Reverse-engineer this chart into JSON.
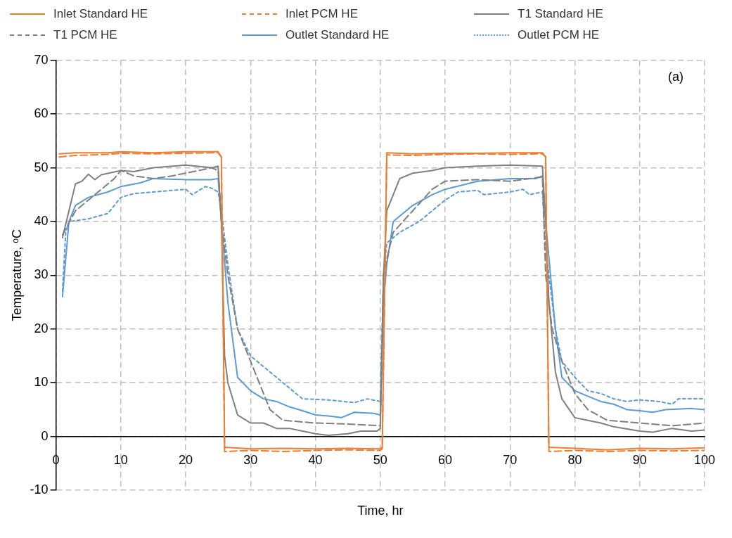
{
  "chart_data": {
    "type": "line",
    "xlabel": "Time, hr",
    "ylabel": "Temperature, ᵒC",
    "annotations": [
      "(a)"
    ],
    "xlim": [
      0,
      100
    ],
    "ylim": [
      -10,
      70
    ],
    "xticks": [
      0,
      10,
      20,
      30,
      40,
      50,
      60,
      70,
      80,
      90,
      100
    ],
    "yticks": [
      -10,
      0,
      10,
      20,
      30,
      40,
      50,
      60,
      70
    ],
    "grid": true,
    "legend": "top",
    "marker": "none",
    "series": [
      {
        "name": "Inlet Standard HE",
        "color": "#ed7d31",
        "line_style": "solid",
        "x": [
          0.5,
          3,
          8,
          10,
          15,
          20,
          25,
          25.5,
          26,
          30,
          35,
          40,
          45,
          50,
          50.3,
          51,
          55,
          60,
          65,
          70,
          75,
          75.5,
          76,
          80,
          85,
          90,
          95,
          100
        ],
        "values": [
          52.6,
          52.8,
          52.8,
          53,
          52.8,
          53,
          53,
          52,
          -2,
          -2.3,
          -2.2,
          -2.3,
          -2.2,
          -2.3,
          -2,
          52.8,
          52.6,
          52.7,
          52.7,
          52.8,
          52.8,
          52,
          -2,
          -2.2,
          -2.5,
          -2.2,
          -2.3,
          -2.1
        ]
      },
      {
        "name": "Inlet PCM HE",
        "color": "#ed7d31",
        "line_style": "dashed",
        "x": [
          0.5,
          3,
          8,
          10,
          15,
          20,
          25,
          25.5,
          26,
          30,
          35,
          40,
          45,
          50,
          50.3,
          51,
          55,
          60,
          65,
          70,
          75,
          75.5,
          76,
          80,
          85,
          90,
          95,
          100
        ],
        "values": [
          52,
          52.3,
          52.5,
          52.7,
          52.6,
          52.7,
          52.8,
          52,
          -2.8,
          -2.6,
          -2.8,
          -2.6,
          -2.5,
          -2.6,
          -2.3,
          52.4,
          52.3,
          52.5,
          52.6,
          52.5,
          52.6,
          52,
          -2.8,
          -2.6,
          -2.8,
          -2.6,
          -2.7,
          -2.6
        ]
      },
      {
        "name": "T1 Standard HE",
        "color": "#7f7f7f",
        "line_style": "solid",
        "x": [
          1,
          3,
          4,
          5,
          6,
          7,
          10,
          12,
          15,
          20,
          24,
          25,
          25.5,
          26,
          26.5,
          28,
          30,
          32,
          34,
          36,
          38,
          40,
          42,
          45,
          47,
          49.5,
          50,
          50.5,
          51,
          52,
          53,
          55,
          58,
          60,
          65,
          70,
          75,
          75.5,
          76,
          77,
          78,
          80,
          82,
          84,
          86,
          90,
          92,
          95,
          98,
          100
        ],
        "values": [
          37,
          47,
          47.5,
          48.8,
          47.8,
          48.7,
          49.5,
          49.3,
          50,
          50.5,
          50,
          50.3,
          40,
          15,
          10,
          4,
          2.5,
          2.5,
          1.5,
          1.5,
          1,
          0.5,
          0.2,
          0.5,
          1,
          1,
          1.5,
          30,
          42,
          45,
          48,
          49,
          49.5,
          50,
          50.3,
          50.5,
          50.3,
          40,
          25,
          12,
          7,
          3.5,
          3,
          2.5,
          1.8,
          1,
          0.8,
          1.5,
          1,
          1.2
        ]
      },
      {
        "name": "T1 PCM HE",
        "color": "#7f7f7f",
        "line_style": "dashed",
        "x": [
          1,
          3,
          5,
          7,
          9,
          10,
          12,
          15,
          18,
          20,
          24,
          25,
          25.5,
          26.5,
          28,
          30,
          32,
          33,
          35,
          40,
          45,
          50,
          50.5,
          51,
          52,
          55,
          58,
          60,
          65,
          70,
          75,
          75.5,
          76.5,
          78,
          80,
          82,
          85,
          90,
          95,
          100
        ],
        "values": [
          37.5,
          42,
          44,
          46,
          48,
          49.5,
          48.5,
          48,
          48.5,
          49,
          50,
          49.5,
          40,
          30,
          20,
          14,
          8,
          5,
          3,
          2.5,
          2.3,
          2,
          30,
          33,
          38,
          42,
          46,
          47.5,
          47.8,
          47.5,
          48.3,
          30,
          20,
          14,
          8,
          5,
          3,
          2.5,
          2,
          2.5
        ]
      },
      {
        "name": "Outlet Standard HE",
        "color": "#5b9bd5",
        "line_style": "solid",
        "x": [
          1,
          2,
          3,
          5,
          8,
          10,
          13,
          15,
          20,
          24,
          25,
          25.5,
          26.5,
          28,
          30,
          32,
          34,
          36,
          38,
          40,
          42,
          44,
          46,
          49,
          50,
          50.5,
          51,
          52,
          55,
          58,
          60,
          65,
          70,
          74,
          75,
          75.5,
          77,
          78,
          80,
          82,
          84,
          86,
          88,
          90,
          92,
          94,
          98,
          100
        ],
        "values": [
          26,
          40,
          43,
          44.5,
          45.5,
          46.5,
          47.2,
          48,
          47.8,
          47.8,
          48,
          40,
          25,
          11,
          8.5,
          7,
          6.5,
          5.5,
          4.8,
          4,
          3.8,
          3.5,
          4.5,
          4.3,
          4,
          25,
          32,
          40,
          43,
          45,
          46,
          47.5,
          48,
          48,
          48.5,
          40,
          20,
          11,
          8.5,
          7.5,
          6.5,
          6,
          5,
          4.8,
          4.5,
          5,
          5.2,
          5
        ]
      },
      {
        "name": "Outlet PCM HE",
        "color": "#5b9bd5",
        "line_style": "dotted",
        "x": [
          1,
          1.5,
          2,
          5,
          8,
          9,
          10,
          12,
          15,
          20,
          21,
          23,
          24,
          25,
          25.5,
          26.5,
          28,
          30,
          32,
          34,
          36,
          38,
          42,
          46,
          48,
          50,
          50.5,
          51,
          53,
          56,
          58,
          60,
          62,
          65,
          66,
          70,
          72,
          73,
          75,
          75.5,
          77,
          78,
          80,
          82,
          84,
          86,
          88,
          90,
          93,
          95,
          96,
          100
        ],
        "values": [
          27,
          38,
          40,
          40.5,
          41.5,
          43,
          44.5,
          45.2,
          45.5,
          46,
          45,
          46.5,
          46.2,
          45.5,
          42,
          32,
          20,
          15,
          13,
          11,
          9,
          7,
          6.8,
          6.3,
          7,
          6.5,
          30,
          36,
          38,
          40,
          42,
          44,
          45.5,
          45.8,
          45,
          45.5,
          46,
          45,
          45.5,
          35,
          20,
          14,
          11,
          8.5,
          8,
          7,
          6.5,
          6.8,
          6.5,
          6,
          7,
          7
        ]
      }
    ]
  }
}
